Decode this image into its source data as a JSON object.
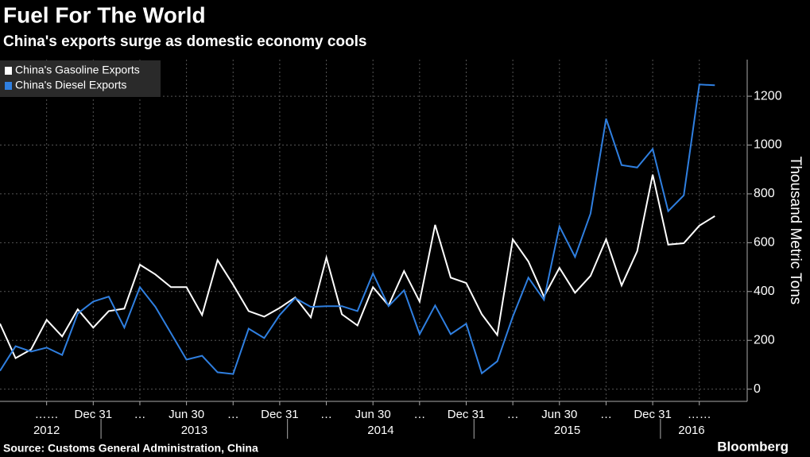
{
  "chart_data": {
    "type": "line",
    "title": "Fuel For The World",
    "subtitle": "China's exports surge as domestic economy cools",
    "y_label": "Thousand Metric Tons",
    "source": "Source: Customs General Administration, China",
    "brand": "Bloomberg",
    "x": [
      "2012-06",
      "2012-07",
      "2012-08",
      "2012-09",
      "2012-10",
      "2012-11",
      "2012-12",
      "2013-01",
      "2013-02",
      "2013-03",
      "2013-04",
      "2013-05",
      "2013-06",
      "2013-07",
      "2013-08",
      "2013-09",
      "2013-10",
      "2013-11",
      "2013-12",
      "2014-01",
      "2014-02",
      "2014-03",
      "2014-04",
      "2014-05",
      "2014-06",
      "2014-07",
      "2014-08",
      "2014-09",
      "2014-10",
      "2014-11",
      "2014-12",
      "2015-01",
      "2015-02",
      "2015-03",
      "2015-04",
      "2015-05",
      "2015-06",
      "2015-07",
      "2015-08",
      "2015-09",
      "2015-10",
      "2015-11",
      "2015-12",
      "2016-01",
      "2016-02",
      "2016-03",
      "2016-04"
    ],
    "series": [
      {
        "name": "China's Gasoline Exports",
        "color": "#ffffff",
        "values": [
          268,
          127,
          163,
          284,
          216,
          327,
          252,
          320,
          330,
          510,
          470,
          418,
          418,
          304,
          529,
          428,
          320,
          297,
          333,
          376,
          294,
          539,
          307,
          261,
          418,
          343,
          484,
          359,
          673,
          457,
          435,
          307,
          222,
          614,
          523,
          379,
          497,
          395,
          464,
          614,
          425,
          565,
          879,
          592,
          598,
          670,
          709
        ]
      },
      {
        "name": "China's Diesel Exports",
        "color": "#2f7fe0",
        "values": [
          75,
          176,
          154,
          170,
          140,
          310,
          359,
          379,
          252,
          418,
          337,
          229,
          121,
          137,
          69,
          62,
          248,
          209,
          304,
          373,
          337,
          340,
          340,
          320,
          474,
          340,
          405,
          225,
          343,
          225,
          268,
          65,
          114,
          297,
          457,
          366,
          667,
          542,
          719,
          1108,
          918,
          908,
          984,
          729,
          794,
          1248,
          1245
        ]
      }
    ],
    "ylim": [
      -50,
      1350
    ],
    "yticks": [
      0,
      200,
      400,
      600,
      800,
      1000,
      1200
    ],
    "xticks": [
      {
        "value": "2012-09",
        "label": "……"
      },
      {
        "value": "2012-12",
        "label": "Dec 31"
      },
      {
        "value": "2013-03",
        "label": "…"
      },
      {
        "value": "2013-06",
        "label": "Jun 30"
      },
      {
        "value": "2013-09",
        "label": "…"
      },
      {
        "value": "2013-12",
        "label": "Dec 31"
      },
      {
        "value": "2014-03",
        "label": "…"
      },
      {
        "value": "2014-06",
        "label": "Jun 30"
      },
      {
        "value": "2014-09",
        "label": "…"
      },
      {
        "value": "2014-12",
        "label": "Dec 31"
      },
      {
        "value": "2015-03",
        "label": "…"
      },
      {
        "value": "2015-06",
        "label": "Jun 30"
      },
      {
        "value": "2015-09",
        "label": "…"
      },
      {
        "value": "2015-12",
        "label": "Dec 31"
      },
      {
        "value": "2016-03",
        "label": "……"
      }
    ],
    "years": [
      "2012",
      "2013",
      "2014",
      "2015",
      "2016"
    ],
    "grid": true,
    "legend": "top-left"
  }
}
